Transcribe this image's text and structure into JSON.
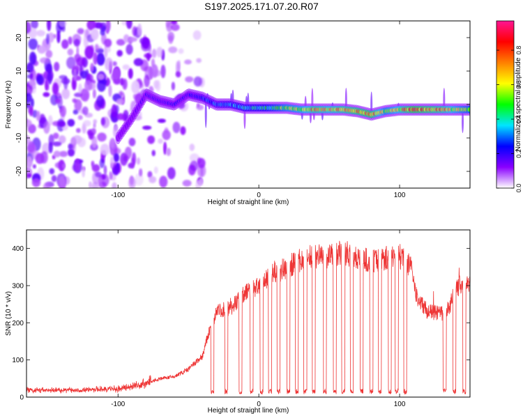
{
  "page_title": "S197.2025.171.07.20.R07",
  "chart_data": [
    {
      "type": "heatmap",
      "title": "S197.2025.171.07.20.R07",
      "xlabel": "Height of straight line (km)",
      "ylabel": "Frequency (Hz)",
      "xlim": [
        -165,
        150
      ],
      "ylim": [
        -25,
        25
      ],
      "xticks": [
        -100,
        0,
        100
      ],
      "yticks": [
        -20,
        -10,
        0,
        10,
        20
      ],
      "colorbar": {
        "label": "Normalized spectral amplitude",
        "range": [
          0.0,
          0.97
        ],
        "ticks": [
          0.0,
          0.2,
          0.4,
          0.6,
          0.8
        ],
        "tick_labels": [
          "0.0",
          "0.2",
          "0.4",
          "0.6",
          "0.8"
        ],
        "colors": [
          "#ffffff",
          "#8a00ff",
          "#0000ff",
          "#00e5ff",
          "#00ff00",
          "#ffff00",
          "#ff8000",
          "#ff0000",
          "#ff1493"
        ]
      },
      "noise_region": {
        "x_from": -165,
        "x_to": -40,
        "freq_from": -25,
        "freq_to": 25,
        "level": 0.1
      },
      "ridge": [
        {
          "x": -100,
          "freq": -10,
          "level": 0.12
        },
        {
          "x": -90,
          "freq": -4,
          "level": 0.15
        },
        {
          "x": -80,
          "freq": 3,
          "level": 0.18
        },
        {
          "x": -70,
          "freq": 1,
          "level": 0.2
        },
        {
          "x": -60,
          "freq": 0,
          "level": 0.22
        },
        {
          "x": -50,
          "freq": 3,
          "level": 0.22
        },
        {
          "x": -40,
          "freq": 2,
          "level": 0.28
        },
        {
          "x": -30,
          "freq": 0,
          "level": 0.3
        },
        {
          "x": -20,
          "freq": 0,
          "level": 0.35
        },
        {
          "x": -10,
          "freq": -1,
          "level": 0.4
        },
        {
          "x": 0,
          "freq": -1,
          "level": 0.42
        },
        {
          "x": 10,
          "freq": -1,
          "level": 0.5
        },
        {
          "x": 20,
          "freq": -1,
          "level": 0.6
        },
        {
          "x": 30,
          "freq": -1.5,
          "level": 0.65
        },
        {
          "x": 40,
          "freq": -1.5,
          "level": 0.75
        },
        {
          "x": 50,
          "freq": -1.5,
          "level": 0.7
        },
        {
          "x": 60,
          "freq": -1.5,
          "level": 0.75
        },
        {
          "x": 70,
          "freq": -2,
          "level": 0.8
        },
        {
          "x": 80,
          "freq": -3,
          "level": 0.82
        },
        {
          "x": 90,
          "freq": -2,
          "level": 0.6
        },
        {
          "x": 100,
          "freq": -1.5,
          "level": 0.7
        },
        {
          "x": 110,
          "freq": -1.5,
          "level": 0.85
        },
        {
          "x": 120,
          "freq": -1.5,
          "level": 0.8
        },
        {
          "x": 130,
          "freq": -1.5,
          "level": 0.75
        },
        {
          "x": 140,
          "freq": -1.5,
          "level": 0.65
        },
        {
          "x": 150,
          "freq": -1.5,
          "level": 0.55
        }
      ]
    },
    {
      "type": "line",
      "xlabel": "Height of straight line (km)",
      "ylabel": "SNR (10 * v/v)",
      "xlim": [
        -165,
        150
      ],
      "ylim": [
        0,
        450
      ],
      "xticks": [
        -100,
        0,
        100
      ],
      "yticks": [
        0,
        100,
        200,
        300,
        400
      ],
      "line_color": "#ee3333",
      "envelope": [
        {
          "x": -165,
          "y": 15
        },
        {
          "x": -150,
          "y": 15
        },
        {
          "x": -130,
          "y": 15
        },
        {
          "x": -100,
          "y": 18
        },
        {
          "x": -90,
          "y": 25
        },
        {
          "x": -80,
          "y": 35
        },
        {
          "x": -70,
          "y": 50
        },
        {
          "x": -60,
          "y": 55
        },
        {
          "x": -50,
          "y": 75
        },
        {
          "x": -40,
          "y": 110
        },
        {
          "x": -35,
          "y": 180
        },
        {
          "x": -30,
          "y": 230
        },
        {
          "x": -20,
          "y": 240
        },
        {
          "x": -10,
          "y": 280
        },
        {
          "x": 0,
          "y": 300
        },
        {
          "x": 10,
          "y": 330
        },
        {
          "x": 20,
          "y": 350
        },
        {
          "x": 30,
          "y": 370
        },
        {
          "x": 40,
          "y": 380
        },
        {
          "x": 50,
          "y": 380
        },
        {
          "x": 60,
          "y": 390
        },
        {
          "x": 70,
          "y": 375
        },
        {
          "x": 80,
          "y": 365
        },
        {
          "x": 90,
          "y": 375
        },
        {
          "x": 100,
          "y": 380
        },
        {
          "x": 108,
          "y": 350
        },
        {
          "x": 112,
          "y": 270
        },
        {
          "x": 120,
          "y": 230
        },
        {
          "x": 130,
          "y": 225
        },
        {
          "x": 135,
          "y": 240
        },
        {
          "x": 140,
          "y": 290
        },
        {
          "x": 145,
          "y": 310
        },
        {
          "x": 150,
          "y": 300
        }
      ],
      "dropouts": [
        {
          "x": -33,
          "y": 5
        },
        {
          "x": -23,
          "y": 5
        },
        {
          "x": -13,
          "y": 10
        },
        {
          "x": -5,
          "y": 10
        },
        {
          "x": 2,
          "y": 15
        },
        {
          "x": 8,
          "y": 15
        },
        {
          "x": 14,
          "y": 15
        },
        {
          "x": 21,
          "y": 15
        },
        {
          "x": 27,
          "y": 15
        },
        {
          "x": 33,
          "y": 15
        },
        {
          "x": 39,
          "y": 15
        },
        {
          "x": 47,
          "y": 15
        },
        {
          "x": 54,
          "y": 15
        },
        {
          "x": 60,
          "y": 15
        },
        {
          "x": 66,
          "y": 15
        },
        {
          "x": 73,
          "y": 15
        },
        {
          "x": 80,
          "y": 15
        },
        {
          "x": 86,
          "y": 15
        },
        {
          "x": 93,
          "y": 15
        },
        {
          "x": 98,
          "y": 15
        },
        {
          "x": 104,
          "y": 15
        },
        {
          "x": 132,
          "y": 15
        },
        {
          "x": 139,
          "y": 15
        },
        {
          "x": 146,
          "y": 15
        }
      ]
    }
  ]
}
